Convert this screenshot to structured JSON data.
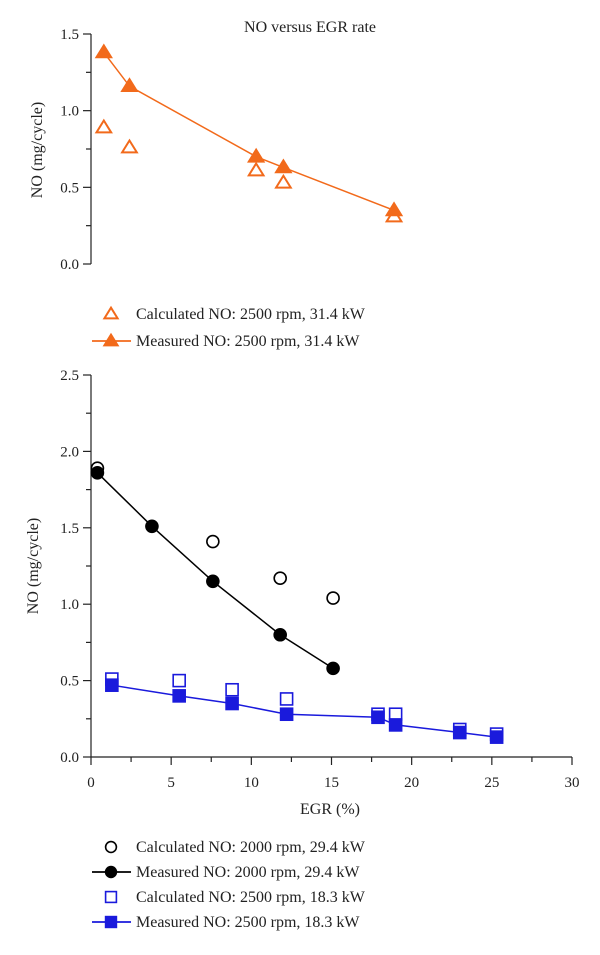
{
  "chart_data": [
    {
      "type": "scatter",
      "title": "NO versus EGR rate",
      "xlabel": "",
      "ylabel": "NO (mg/cycle)",
      "xlim": [
        0,
        30
      ],
      "ylim": [
        0,
        1.5
      ],
      "yticks": [
        "0.0",
        "0.5",
        "1.0",
        "1.5"
      ],
      "ytick_values": [
        0,
        0.5,
        1.0,
        1.5
      ],
      "grid": false,
      "legend_position": "below",
      "series": [
        {
          "name": "Calculated NO: 2500 rpm, 31.4 kW",
          "marker": "triangle-open",
          "line": false,
          "color": "#f26a1b",
          "x": [
            0.8,
            2.4,
            10.3,
            12.0,
            18.9
          ],
          "y": [
            0.89,
            0.76,
            0.61,
            0.53,
            0.31
          ]
        },
        {
          "name": "Measured NO: 2500 rpm, 31.4 kW",
          "marker": "triangle-filled",
          "line": true,
          "color": "#f26a1b",
          "x": [
            0.8,
            2.4,
            10.3,
            12.0,
            18.9
          ],
          "y": [
            1.38,
            1.16,
            0.7,
            0.63,
            0.35
          ]
        }
      ]
    },
    {
      "type": "scatter",
      "title": "",
      "xlabel": "EGR (%)",
      "ylabel": "NO (mg/cycle)",
      "xlim": [
        0,
        30
      ],
      "ylim": [
        0,
        2.5
      ],
      "xticks": [
        "0",
        "5",
        "10",
        "15",
        "20",
        "25",
        "30"
      ],
      "xtick_values": [
        0,
        5,
        10,
        15,
        20,
        25,
        30
      ],
      "yticks": [
        "0.0",
        "0.5",
        "1.0",
        "1.5",
        "2.0",
        "2.5"
      ],
      "ytick_values": [
        0,
        0.5,
        1.0,
        1.5,
        2.0,
        2.5
      ],
      "grid": false,
      "legend_position": "below",
      "series": [
        {
          "name": "Calculated NO: 2000 rpm, 29.4 kW",
          "marker": "circle-open",
          "line": false,
          "color": "#000000",
          "x": [
            0.4,
            7.6,
            11.8,
            15.1
          ],
          "y": [
            1.89,
            1.41,
            1.17,
            1.04
          ]
        },
        {
          "name": "Measured NO: 2000 rpm, 29.4 kW",
          "marker": "circle-filled",
          "line": true,
          "color": "#000000",
          "x": [
            0.4,
            3.8,
            7.6,
            11.8,
            15.1
          ],
          "y": [
            1.86,
            1.51,
            1.15,
            0.8,
            0.58
          ]
        },
        {
          "name": "Calculated NO: 2500 rpm, 18.3 kW",
          "marker": "square-open",
          "line": false,
          "color": "#1a1adc",
          "x": [
            1.3,
            5.5,
            8.8,
            12.2,
            17.9,
            19.0,
            23.0,
            25.3
          ],
          "y": [
            0.51,
            0.5,
            0.44,
            0.38,
            0.28,
            0.28,
            0.18,
            0.15
          ]
        },
        {
          "name": "Measured NO: 2500 rpm, 18.3 kW",
          "marker": "square-filled",
          "line": true,
          "color": "#1a1adc",
          "x": [
            1.3,
            5.5,
            8.8,
            12.2,
            17.9,
            19.0,
            23.0,
            25.3
          ],
          "y": [
            0.47,
            0.4,
            0.35,
            0.28,
            0.26,
            0.21,
            0.16,
            0.13
          ]
        }
      ]
    }
  ]
}
